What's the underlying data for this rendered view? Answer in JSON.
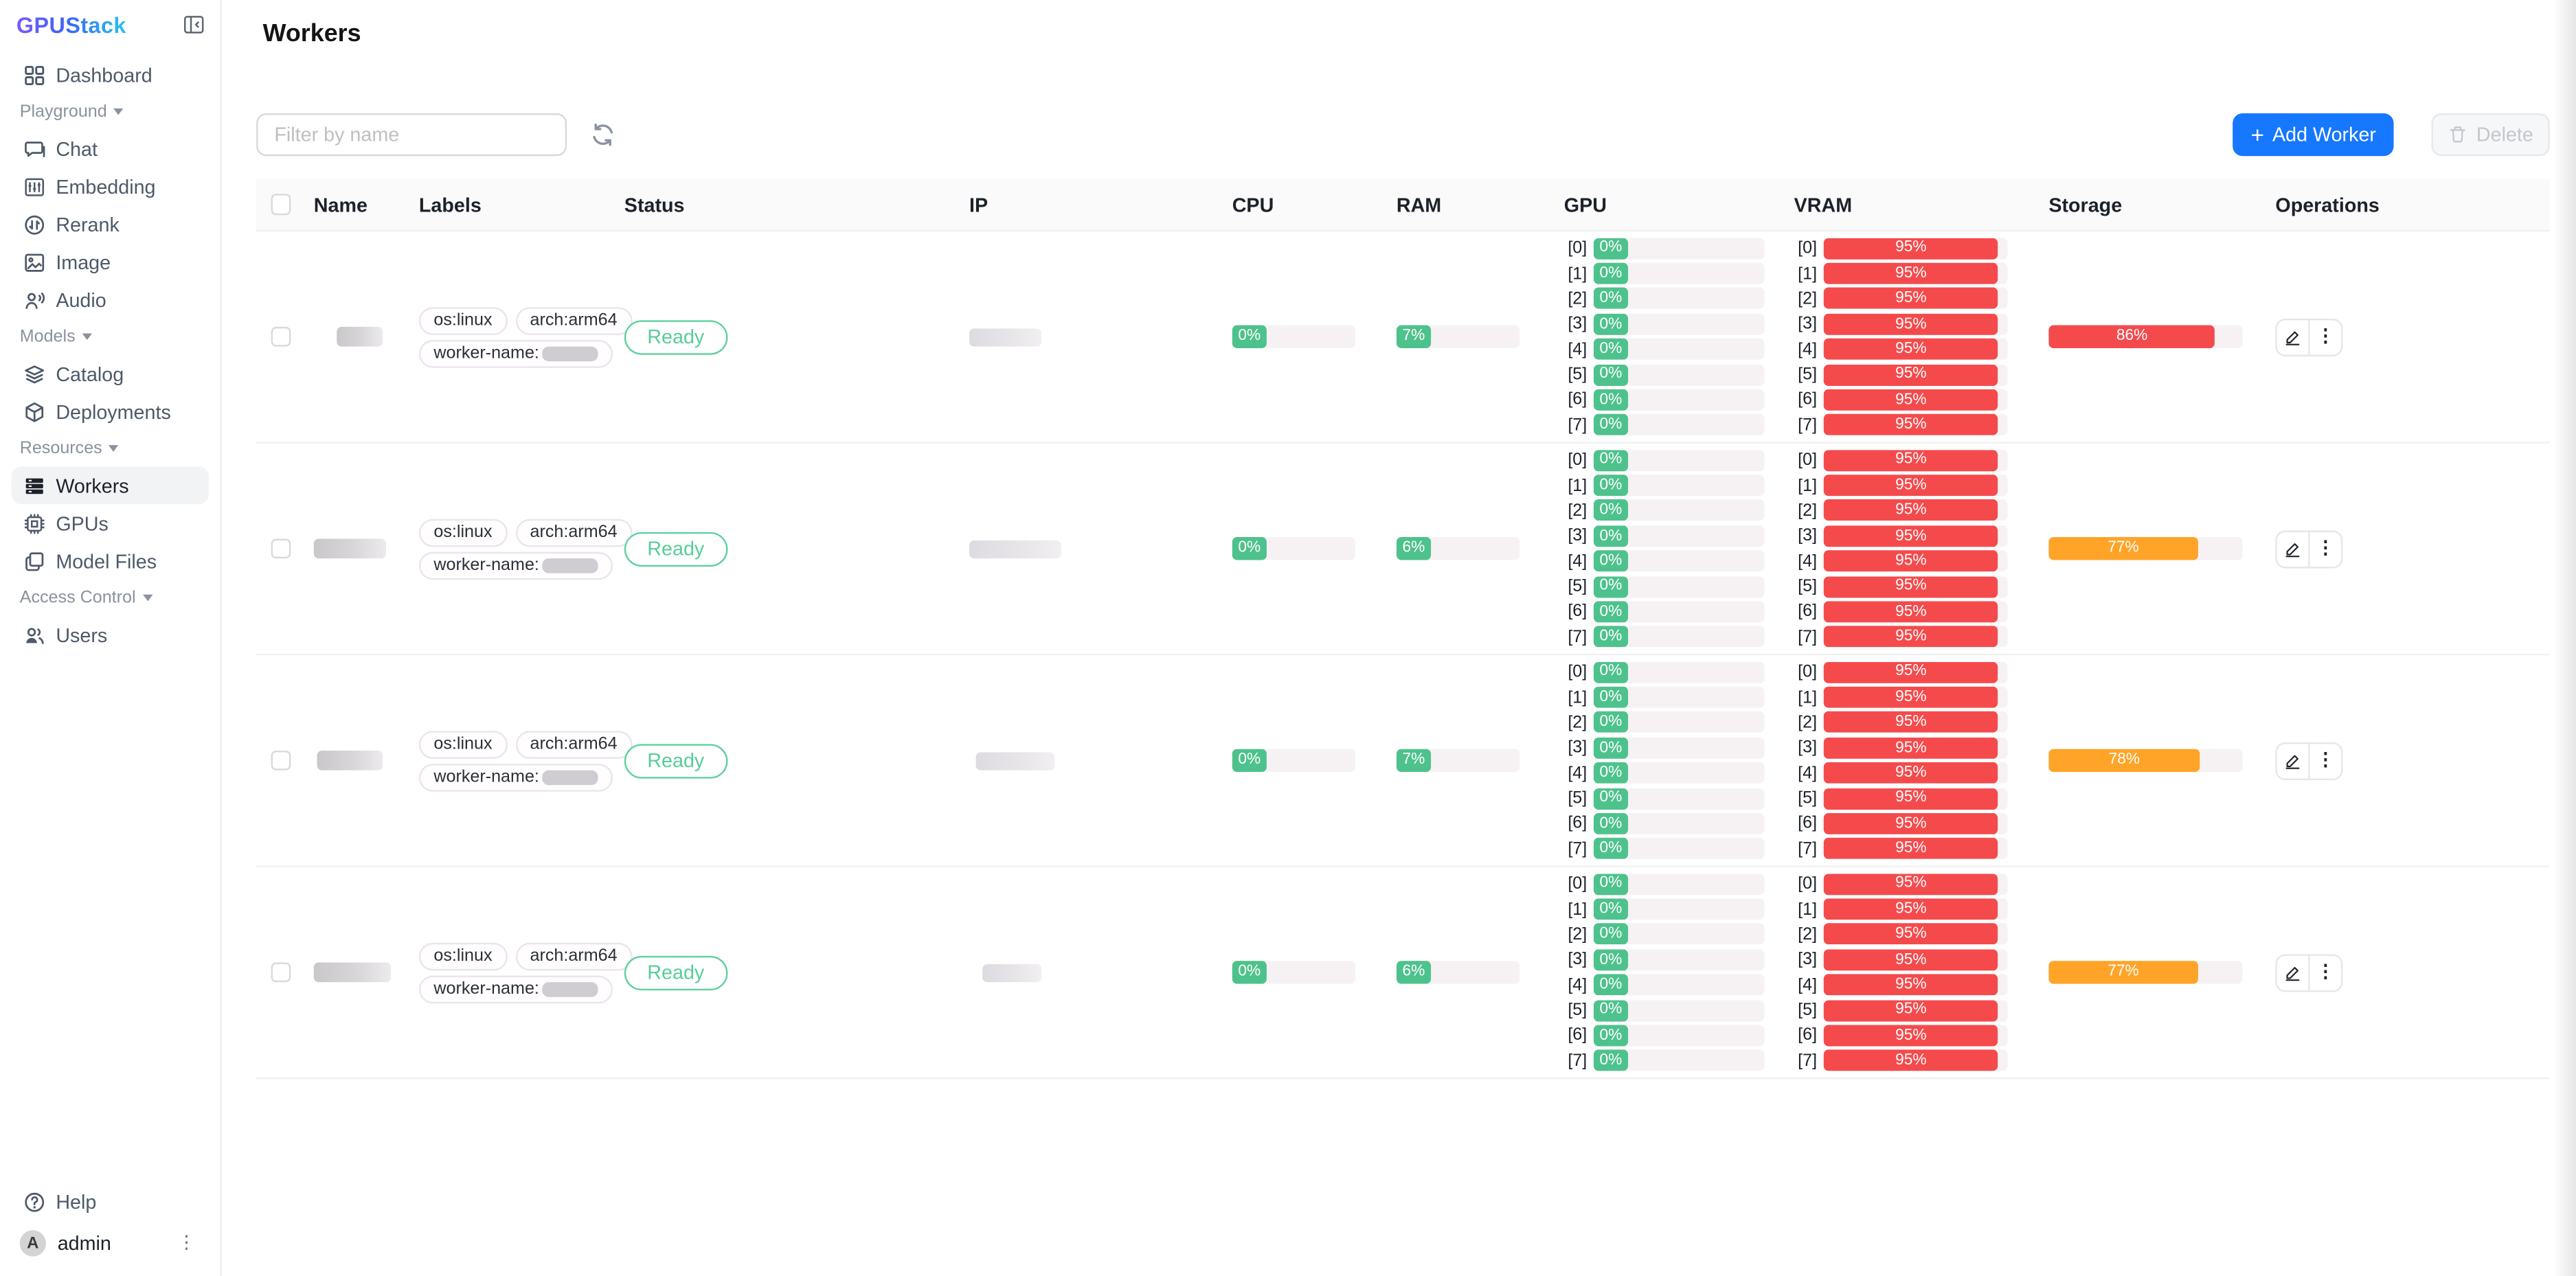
{
  "app": {
    "logo_text": "GPUStack"
  },
  "sidebar": {
    "menu": [
      {
        "type": "item",
        "label": "Dashboard",
        "icon": "dashboard-icon",
        "active": false
      },
      {
        "type": "section",
        "label": "Playground"
      },
      {
        "type": "item",
        "label": "Chat",
        "icon": "chat-icon",
        "active": false
      },
      {
        "type": "item",
        "label": "Embedding",
        "icon": "embedding-icon",
        "active": false
      },
      {
        "type": "item",
        "label": "Rerank",
        "icon": "rerank-icon",
        "active": false
      },
      {
        "type": "item",
        "label": "Image",
        "icon": "image-icon",
        "active": false
      },
      {
        "type": "item",
        "label": "Audio",
        "icon": "audio-icon",
        "active": false
      },
      {
        "type": "section",
        "label": "Models"
      },
      {
        "type": "item",
        "label": "Catalog",
        "icon": "catalog-icon",
        "active": false
      },
      {
        "type": "item",
        "label": "Deployments",
        "icon": "deployments-icon",
        "active": false
      },
      {
        "type": "section",
        "label": "Resources"
      },
      {
        "type": "item",
        "label": "Workers",
        "icon": "workers-icon",
        "active": true
      },
      {
        "type": "item",
        "label": "GPUs",
        "icon": "gpu-icon",
        "active": false
      },
      {
        "type": "item",
        "label": "Model Files",
        "icon": "model-files-icon",
        "active": false
      },
      {
        "type": "section",
        "label": "Access Control"
      },
      {
        "type": "item",
        "label": "Users",
        "icon": "users-icon",
        "active": false
      }
    ],
    "footer": {
      "help_label": "Help",
      "username": "admin",
      "avatar_letter": "A"
    }
  },
  "page": {
    "title": "Workers"
  },
  "toolbar": {
    "filter_placeholder": "Filter by name",
    "add_worker_label": "Add Worker",
    "delete_label": "Delete"
  },
  "table": {
    "headers": [
      "Name",
      "Labels",
      "Status",
      "IP",
      "CPU",
      "RAM",
      "GPU",
      "VRAM",
      "Storage",
      "Operations"
    ]
  },
  "rows": [
    {
      "labels": [
        "os:linux",
        "arch:arm64"
      ],
      "worker_name_label": "worker-name:",
      "status": "Ready",
      "cpu": "0%",
      "ram": "7%",
      "gpu_indices": [
        "[0]",
        "[1]",
        "[2]",
        "[3]",
        "[4]",
        "[5]",
        "[6]",
        "[7]"
      ],
      "gpu_util": [
        "0%",
        "0%",
        "0%",
        "0%",
        "0%",
        "0%",
        "0%",
        "0%"
      ],
      "vram_util": [
        "95%",
        "95%",
        "95%",
        "95%",
        "95%",
        "95%",
        "95%",
        "95%"
      ],
      "vram_percent": 95,
      "storage": {
        "text": "86%",
        "percent": 86,
        "level": "red"
      },
      "name_blob": {
        "w": 28,
        "ml": 14
      },
      "ip_blob": {
        "w": 44,
        "ml": 0
      }
    },
    {
      "labels": [
        "os:linux",
        "arch:arm64"
      ],
      "worker_name_label": "worker-name:",
      "status": "Ready",
      "cpu": "0%",
      "ram": "6%",
      "gpu_indices": [
        "[0]",
        "[1]",
        "[2]",
        "[3]",
        "[4]",
        "[5]",
        "[6]",
        "[7]"
      ],
      "gpu_util": [
        "0%",
        "0%",
        "0%",
        "0%",
        "0%",
        "0%",
        "0%",
        "0%"
      ],
      "vram_util": [
        "95%",
        "95%",
        "95%",
        "95%",
        "95%",
        "95%",
        "95%",
        "95%"
      ],
      "vram_percent": 95,
      "storage": {
        "text": "77%",
        "percent": 77,
        "level": "orange"
      },
      "name_blob": {
        "w": 44,
        "ml": 0
      },
      "ip_blob": {
        "w": 56,
        "ml": 0
      }
    },
    {
      "labels": [
        "os:linux",
        "arch:arm64"
      ],
      "worker_name_label": "worker-name:",
      "status": "Ready",
      "cpu": "0%",
      "ram": "7%",
      "gpu_indices": [
        "[0]",
        "[1]",
        "[2]",
        "[3]",
        "[4]",
        "[5]",
        "[6]",
        "[7]"
      ],
      "gpu_util": [
        "0%",
        "0%",
        "0%",
        "0%",
        "0%",
        "0%",
        "0%",
        "0%"
      ],
      "vram_util": [
        "95%",
        "95%",
        "95%",
        "95%",
        "95%",
        "95%",
        "95%",
        "95%"
      ],
      "vram_percent": 95,
      "storage": {
        "text": "78%",
        "percent": 78,
        "level": "orange"
      },
      "name_blob": {
        "w": 40,
        "ml": 2
      },
      "ip_blob": {
        "w": 48,
        "ml": 4
      }
    },
    {
      "labels": [
        "os:linux",
        "arch:arm64"
      ],
      "worker_name_label": "worker-name:",
      "status": "Ready",
      "cpu": "0%",
      "ram": "6%",
      "gpu_indices": [
        "[0]",
        "[1]",
        "[2]",
        "[3]",
        "[4]",
        "[5]",
        "[6]",
        "[7]"
      ],
      "gpu_util": [
        "0%",
        "0%",
        "0%",
        "0%",
        "0%",
        "0%",
        "0%",
        "0%"
      ],
      "vram_util": [
        "95%",
        "95%",
        "95%",
        "95%",
        "95%",
        "95%",
        "95%",
        "95%"
      ],
      "vram_percent": 95,
      "storage": {
        "text": "77%",
        "percent": 77,
        "level": "orange"
      },
      "name_blob": {
        "w": 47,
        "ml": 0
      },
      "ip_blob": {
        "w": 36,
        "ml": 8
      }
    }
  ],
  "colors": {
    "green": "#4ec28c",
    "ready_green": "#5ed09e",
    "red": "#f54a4c",
    "orange": "#ffa428",
    "primary_blue": "#1677ff",
    "track": "#f6f2f3",
    "header_bg": "#fafafa"
  }
}
